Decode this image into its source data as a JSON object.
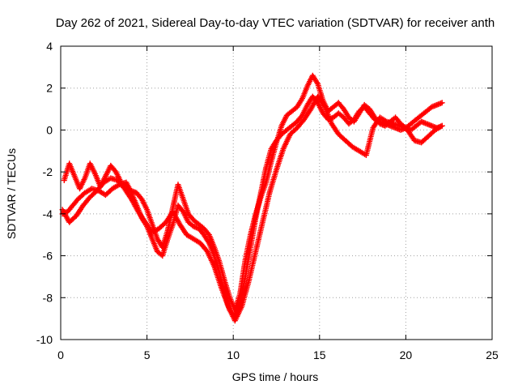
{
  "chart_data": {
    "type": "scatter",
    "title": "Day 262 of 2021, Sidereal Day-to-day VTEC variation (SDTVAR) for receiver anth",
    "xlabel": "GPS time / hours",
    "ylabel": "SDTVAR / TECUs",
    "xlim": [
      0,
      25
    ],
    "ylim": [
      -10,
      4
    ],
    "xticks": [
      "0",
      "5",
      "10",
      "15",
      "20",
      "25"
    ],
    "yticks": [
      "-10",
      "-8",
      "-6",
      "-4",
      "-2",
      "0",
      "2",
      "4"
    ],
    "grid": true,
    "marker": "+",
    "color": "#ff0000",
    "series": [
      {
        "x": [
          0.1,
          0.4,
          0.7,
          1.0,
          1.4,
          1.8,
          2.2,
          2.6,
          3.0,
          3.4,
          3.8,
          4.1,
          4.4,
          4.7,
          5.0,
          5.3,
          5.6,
          5.9,
          6.2,
          6.5,
          6.8,
          7.1,
          7.4,
          7.7,
          8.0,
          8.3,
          8.6,
          8.9,
          9.2,
          9.5,
          9.8,
          10.1,
          10.4,
          10.7,
          11.0,
          11.3,
          11.6,
          11.9,
          12.2,
          12.5,
          12.8,
          13.1,
          13.4,
          13.7,
          14.0,
          14.3,
          14.6,
          14.9,
          15.2,
          15.5,
          15.8,
          16.1,
          16.4,
          16.7,
          17.0,
          17.3,
          17.6,
          17.9,
          18.2,
          18.5,
          18.8,
          19.1,
          19.4,
          19.7,
          20.0,
          20.3,
          20.6,
          20.9,
          21.2,
          21.5,
          21.8,
          22.1
        ],
        "y": [
          -4.0,
          -3.9,
          -3.6,
          -3.3,
          -3.0,
          -2.8,
          -2.9,
          -3.1,
          -2.8,
          -2.6,
          -2.5,
          -3.0,
          -3.6,
          -4.2,
          -4.6,
          -5.2,
          -5.8,
          -6.0,
          -5.2,
          -4.5,
          -3.6,
          -3.9,
          -4.4,
          -4.6,
          -4.7,
          -5.0,
          -5.4,
          -6.0,
          -6.8,
          -7.8,
          -8.6,
          -8.9,
          -8.2,
          -7.0,
          -5.6,
          -4.2,
          -3.0,
          -1.8,
          -0.9,
          -0.5,
          -0.2,
          0.0,
          0.2,
          0.4,
          0.7,
          1.2,
          1.6,
          1.3,
          0.8,
          0.5,
          0.6,
          0.8,
          0.6,
          0.3,
          0.5,
          0.9,
          1.1,
          0.8,
          0.5,
          0.4,
          0.3,
          0.2,
          0.1,
          0.0,
          0.1,
          0.3,
          0.5,
          0.7,
          0.9,
          1.1,
          1.2,
          1.3
        ]
      },
      {
        "x": [
          0.1,
          0.5,
          0.9,
          1.3,
          1.7,
          2.1,
          2.5,
          2.9,
          3.3,
          3.7,
          4.1,
          4.5,
          4.9,
          5.3,
          5.7,
          6.1,
          6.5,
          6.9,
          7.3,
          7.7,
          8.1,
          8.5,
          8.9,
          9.3,
          9.7,
          10.1,
          10.5,
          10.9,
          11.3,
          11.7,
          12.1,
          12.5,
          12.9,
          13.3,
          13.7,
          14.1,
          14.5,
          14.9,
          15.3,
          15.7,
          16.1,
          16.5,
          16.9,
          17.3,
          17.7,
          18.1,
          18.5,
          18.9,
          19.3,
          19.7,
          20.1,
          20.5,
          20.9,
          21.3,
          21.7,
          22.1
        ],
        "y": [
          -3.8,
          -4.4,
          -4.1,
          -3.6,
          -3.2,
          -2.9,
          -2.5,
          -2.3,
          -2.4,
          -2.8,
          -3.3,
          -3.9,
          -4.4,
          -4.9,
          -4.7,
          -4.4,
          -3.9,
          -4.5,
          -5.0,
          -5.2,
          -5.4,
          -5.8,
          -6.5,
          -7.5,
          -8.4,
          -9.1,
          -8.4,
          -7.2,
          -5.8,
          -4.4,
          -3.0,
          -1.9,
          -0.9,
          -0.2,
          0.1,
          0.5,
          1.0,
          1.6,
          1.1,
          0.3,
          -0.2,
          -0.5,
          -0.8,
          -1.0,
          -1.2,
          0.1,
          0.6,
          0.4,
          0.3,
          0.2,
          0.0,
          -0.5,
          -0.6,
          -0.3,
          0.0,
          0.2
        ]
      },
      {
        "x": [
          0.2,
          0.5,
          0.8,
          1.1,
          1.4,
          1.7,
          2.0,
          2.3,
          2.6,
          2.9,
          3.2,
          3.5,
          3.8,
          4.1,
          4.4,
          4.7,
          5.0,
          5.3,
          5.6,
          5.9,
          6.2,
          6.5,
          6.8,
          7.1,
          7.4,
          7.7,
          8.0,
          8.3,
          8.6,
          8.9,
          9.2,
          9.5,
          9.8,
          10.1,
          10.4,
          10.7,
          11.0,
          11.3,
          11.6,
          11.9,
          12.2,
          12.5,
          12.8,
          13.1,
          13.4,
          13.7,
          14.0,
          14.3,
          14.6,
          14.9,
          15.2,
          15.5,
          15.8,
          16.1,
          16.4,
          16.7,
          17.0,
          17.3,
          17.6,
          17.9,
          18.2,
          18.5,
          18.8,
          19.1,
          19.4,
          19.7,
          20.0,
          20.3,
          20.6,
          20.9,
          21.2,
          21.5,
          21.8,
          22.1
        ],
        "y": [
          -2.4,
          -1.6,
          -2.2,
          -2.8,
          -2.3,
          -1.6,
          -2.1,
          -2.7,
          -2.2,
          -1.7,
          -2.0,
          -2.5,
          -2.8,
          -2.9,
          -3.0,
          -3.3,
          -3.8,
          -4.5,
          -5.2,
          -5.6,
          -4.8,
          -3.7,
          -2.6,
          -3.3,
          -4.0,
          -4.3,
          -4.5,
          -4.7,
          -5.0,
          -5.6,
          -6.3,
          -7.2,
          -8.0,
          -8.6,
          -7.8,
          -6.2,
          -5.0,
          -4.0,
          -3.2,
          -2.5,
          -1.5,
          -0.6,
          0.2,
          0.7,
          0.9,
          1.1,
          1.5,
          2.1,
          2.6,
          2.2,
          1.4,
          0.9,
          1.1,
          1.3,
          1.0,
          0.6,
          0.4,
          0.8,
          1.2,
          1.0,
          0.6,
          0.3,
          0.2,
          0.4,
          0.6,
          0.3,
          0.1,
          0.0,
          0.2,
          0.4,
          0.3,
          0.2,
          0.1,
          0.2
        ]
      }
    ]
  }
}
